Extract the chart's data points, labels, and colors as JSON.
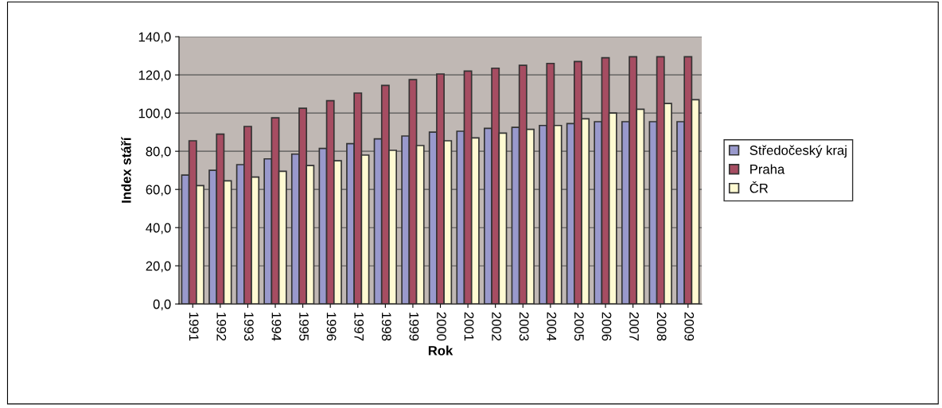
{
  "chart_data": {
    "type": "bar",
    "xlabel": "Rok",
    "ylabel": "Index stáří",
    "categories": [
      "1991",
      "1992",
      "1993",
      "1994",
      "1995",
      "1996",
      "1997",
      "1998",
      "1999",
      "2000",
      "2001",
      "2002",
      "2003",
      "2004",
      "2005",
      "2006",
      "2007",
      "2008",
      "2009"
    ],
    "series": [
      {
        "name": "Středočeský kraj",
        "color": "#9999cc",
        "values": [
          67.5,
          70,
          73,
          76,
          78.5,
          81.5,
          84,
          86.5,
          88,
          90,
          90.5,
          92,
          92.5,
          93.5,
          94.5,
          95.5,
          95.5,
          95.5,
          95.5
        ]
      },
      {
        "name": "Praha",
        "color": "#a64d62",
        "values": [
          85.5,
          89,
          93,
          97.5,
          102.5,
          106.5,
          110.5,
          114.5,
          117.5,
          120.5,
          122,
          123.5,
          125,
          126,
          127,
          129,
          129.5,
          129.5,
          129.5
        ]
      },
      {
        "name": "ČR",
        "color": "#fffad2",
        "values": [
          62,
          64.5,
          66.5,
          69.5,
          72.5,
          75,
          78,
          80.5,
          83,
          85.5,
          87,
          89.5,
          91.5,
          93.5,
          97,
          100,
          102,
          105,
          107
        ]
      }
    ],
    "ylim": [
      0,
      140
    ],
    "yticks": [
      {
        "value": 0,
        "label": "0,0"
      },
      {
        "value": 20,
        "label": "20,0"
      },
      {
        "value": 40,
        "label": "40,0"
      },
      {
        "value": 60,
        "label": "60,0"
      },
      {
        "value": 80,
        "label": "80,0"
      },
      {
        "value": 100,
        "label": "100,0"
      },
      {
        "value": 120,
        "label": "120,0"
      },
      {
        "value": 140,
        "label": "140,0"
      }
    ],
    "grid": "y",
    "legend": "right"
  }
}
